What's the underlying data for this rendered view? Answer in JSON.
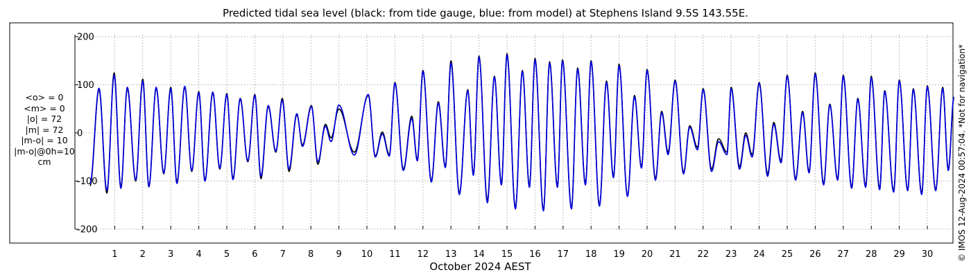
{
  "title": "Predicted tidal sea level (black: from tide gauge, blue: from model) at Stephens Island 9.5S 143.55E.",
  "stats": [
    "<o> = 0",
    "<m> = 0",
    "|o| = 72",
    "|m| = 72",
    "|m-o| = 10",
    "|m-o|@0h=10",
    "cm"
  ],
  "footer": "© IMOS 12-Aug-2024 00:57:04. *Not for navigation*",
  "chart_data": {
    "type": "line",
    "xlabel": "October 2024 AEST",
    "ylabel": "",
    "xlim": [
      0.0,
      31.0
    ],
    "ylim": [
      -220,
      220
    ],
    "yticks": [
      200,
      100,
      0,
      -100,
      -200
    ],
    "xticks": [
      1,
      2,
      3,
      4,
      5,
      6,
      7,
      8,
      9,
      10,
      11,
      12,
      13,
      14,
      15,
      16,
      17,
      18,
      19,
      20,
      21,
      22,
      23,
      24,
      25,
      26,
      27,
      28,
      29,
      30
    ],
    "grid": true,
    "colors": {
      "observed": "#000000",
      "model": "#0000dd",
      "grid": "#aaaaaa"
    },
    "series": [
      {
        "name": "tide gauge",
        "color": "#000000",
        "highs": [
          [
            0.44,
            90
          ],
          [
            0.98,
            125
          ],
          [
            1.45,
            92
          ],
          [
            2.0,
            112
          ],
          [
            2.48,
            93
          ],
          [
            3.0,
            95
          ],
          [
            3.5,
            95
          ],
          [
            4.0,
            86
          ],
          [
            4.5,
            83
          ],
          [
            5.0,
            82
          ],
          [
            5.48,
            70
          ],
          [
            6.0,
            80
          ],
          [
            6.48,
            55
          ],
          [
            6.98,
            72
          ],
          [
            7.5,
            38
          ],
          [
            8.02,
            57
          ],
          [
            8.52,
            18
          ],
          [
            9.0,
            50
          ],
          [
            10.05,
            78
          ],
          [
            10.55,
            2
          ],
          [
            11.0,
            105
          ],
          [
            11.6,
            35
          ],
          [
            12.0,
            130
          ],
          [
            12.55,
            65
          ],
          [
            13.0,
            150
          ],
          [
            13.6,
            90
          ],
          [
            14.0,
            160
          ],
          [
            14.55,
            118
          ],
          [
            15.0,
            165
          ],
          [
            15.55,
            130
          ],
          [
            16.0,
            155
          ],
          [
            16.52,
            148
          ],
          [
            16.98,
            152
          ],
          [
            17.52,
            135
          ],
          [
            18.0,
            150
          ],
          [
            18.55,
            108
          ],
          [
            19.0,
            143
          ],
          [
            19.55,
            78
          ],
          [
            20.0,
            132
          ],
          [
            20.52,
            45
          ],
          [
            21.0,
            110
          ],
          [
            21.52,
            15
          ],
          [
            22.0,
            92
          ],
          [
            22.55,
            -12
          ],
          [
            23.0,
            95
          ],
          [
            23.52,
            0
          ],
          [
            24.0,
            105
          ],
          [
            24.52,
            22
          ],
          [
            25.0,
            120
          ],
          [
            25.55,
            45
          ],
          [
            26.0,
            125
          ],
          [
            26.52,
            60
          ],
          [
            27.0,
            120
          ],
          [
            27.52,
            72
          ],
          [
            28.0,
            118
          ],
          [
            28.48,
            88
          ],
          [
            29.0,
            110
          ],
          [
            29.5,
            92
          ],
          [
            30.0,
            98
          ],
          [
            30.55,
            95
          ],
          [
            30.95,
            72
          ]
        ],
        "lows": [
          [
            0.12,
            -110
          ],
          [
            0.72,
            -125
          ],
          [
            1.22,
            -112
          ],
          [
            1.75,
            -100
          ],
          [
            2.22,
            -110
          ],
          [
            2.75,
            -85
          ],
          [
            3.22,
            -102
          ],
          [
            3.75,
            -80
          ],
          [
            4.22,
            -98
          ],
          [
            4.75,
            -75
          ],
          [
            5.22,
            -95
          ],
          [
            5.75,
            -60
          ],
          [
            6.22,
            -95
          ],
          [
            6.75,
            -40
          ],
          [
            7.22,
            -80
          ],
          [
            7.7,
            -25
          ],
          [
            8.25,
            -65
          ],
          [
            8.72,
            -10
          ],
          [
            9.55,
            -40
          ],
          [
            10.3,
            -48
          ],
          [
            10.8,
            -45
          ],
          [
            11.3,
            -75
          ],
          [
            11.8,
            -55
          ],
          [
            12.3,
            -100
          ],
          [
            12.8,
            -70
          ],
          [
            13.3,
            -125
          ],
          [
            13.8,
            -85
          ],
          [
            14.3,
            -140
          ],
          [
            14.8,
            -105
          ],
          [
            15.3,
            -155
          ],
          [
            15.8,
            -110
          ],
          [
            16.3,
            -160
          ],
          [
            16.8,
            -110
          ],
          [
            17.3,
            -155
          ],
          [
            17.8,
            -105
          ],
          [
            18.3,
            -150
          ],
          [
            18.8,
            -90
          ],
          [
            19.3,
            -130
          ],
          [
            19.8,
            -70
          ],
          [
            20.3,
            -95
          ],
          [
            20.75,
            -40
          ],
          [
            21.3,
            -82
          ],
          [
            21.8,
            -30
          ],
          [
            22.3,
            -75
          ],
          [
            22.85,
            -40
          ],
          [
            23.3,
            -70
          ],
          [
            23.75,
            -45
          ],
          [
            24.3,
            -85
          ],
          [
            24.78,
            -58
          ],
          [
            25.3,
            -95
          ],
          [
            25.78,
            -80
          ],
          [
            26.3,
            -105
          ],
          [
            26.8,
            -95
          ],
          [
            27.3,
            -112
          ],
          [
            27.8,
            -110
          ],
          [
            28.3,
            -115
          ],
          [
            28.8,
            -120
          ],
          [
            29.3,
            -118
          ],
          [
            29.8,
            -125
          ],
          [
            30.3,
            -118
          ],
          [
            30.75,
            -75
          ]
        ]
      },
      {
        "name": "model",
        "color": "#0000dd",
        "highs": [
          [
            0.44,
            93
          ],
          [
            0.98,
            120
          ],
          [
            1.45,
            95
          ],
          [
            2.0,
            108
          ],
          [
            2.48,
            95
          ],
          [
            3.0,
            92
          ],
          [
            3.5,
            97
          ],
          [
            4.0,
            84
          ],
          [
            4.5,
            85
          ],
          [
            5.0,
            80
          ],
          [
            5.48,
            72
          ],
          [
            6.0,
            78
          ],
          [
            6.48,
            57
          ],
          [
            6.98,
            68
          ],
          [
            7.5,
            40
          ],
          [
            8.02,
            55
          ],
          [
            8.52,
            14
          ],
          [
            9.0,
            58
          ],
          [
            10.05,
            80
          ],
          [
            10.55,
            -2
          ],
          [
            11.0,
            103
          ],
          [
            11.6,
            30
          ],
          [
            12.0,
            128
          ],
          [
            12.55,
            62
          ],
          [
            13.0,
            145
          ],
          [
            13.6,
            88
          ],
          [
            14.0,
            158
          ],
          [
            14.55,
            116
          ],
          [
            15.0,
            162
          ],
          [
            15.55,
            128
          ],
          [
            16.0,
            152
          ],
          [
            16.52,
            145
          ],
          [
            16.98,
            150
          ],
          [
            17.52,
            132
          ],
          [
            18.0,
            148
          ],
          [
            18.55,
            105
          ],
          [
            19.0,
            140
          ],
          [
            19.55,
            75
          ],
          [
            20.0,
            130
          ],
          [
            20.52,
            42
          ],
          [
            21.0,
            108
          ],
          [
            21.52,
            12
          ],
          [
            22.0,
            90
          ],
          [
            22.55,
            -18
          ],
          [
            23.0,
            92
          ],
          [
            23.52,
            -5
          ],
          [
            24.0,
            103
          ],
          [
            24.52,
            18
          ],
          [
            25.0,
            118
          ],
          [
            25.55,
            42
          ],
          [
            26.0,
            122
          ],
          [
            26.52,
            58
          ],
          [
            27.0,
            118
          ],
          [
            27.52,
            70
          ],
          [
            28.0,
            115
          ],
          [
            28.48,
            86
          ],
          [
            29.0,
            108
          ],
          [
            29.5,
            90
          ],
          [
            30.0,
            96
          ],
          [
            30.55,
            92
          ],
          [
            30.95,
            75
          ]
        ],
        "lows": [
          [
            0.12,
            -105
          ],
          [
            0.72,
            -120
          ],
          [
            1.22,
            -115
          ],
          [
            1.75,
            -98
          ],
          [
            2.22,
            -112
          ],
          [
            2.75,
            -83
          ],
          [
            3.22,
            -105
          ],
          [
            3.75,
            -78
          ],
          [
            4.22,
            -100
          ],
          [
            4.75,
            -73
          ],
          [
            5.22,
            -97
          ],
          [
            5.75,
            -58
          ],
          [
            6.22,
            -90
          ],
          [
            6.75,
            -38
          ],
          [
            7.22,
            -75
          ],
          [
            7.7,
            -28
          ],
          [
            8.25,
            -60
          ],
          [
            8.72,
            -18
          ],
          [
            9.55,
            -46
          ],
          [
            10.3,
            -50
          ],
          [
            10.8,
            -48
          ],
          [
            11.3,
            -78
          ],
          [
            11.8,
            -58
          ],
          [
            12.3,
            -102
          ],
          [
            12.8,
            -72
          ],
          [
            13.3,
            -128
          ],
          [
            13.8,
            -88
          ],
          [
            14.3,
            -145
          ],
          [
            14.8,
            -108
          ],
          [
            15.3,
            -158
          ],
          [
            15.8,
            -113
          ],
          [
            16.3,
            -162
          ],
          [
            16.8,
            -113
          ],
          [
            17.3,
            -158
          ],
          [
            17.8,
            -108
          ],
          [
            18.3,
            -152
          ],
          [
            18.8,
            -93
          ],
          [
            19.3,
            -132
          ],
          [
            19.8,
            -73
          ],
          [
            20.3,
            -98
          ],
          [
            20.75,
            -45
          ],
          [
            21.3,
            -85
          ],
          [
            21.8,
            -35
          ],
          [
            22.3,
            -80
          ],
          [
            22.85,
            -45
          ],
          [
            23.3,
            -75
          ],
          [
            23.75,
            -50
          ],
          [
            24.3,
            -90
          ],
          [
            24.78,
            -62
          ],
          [
            25.3,
            -98
          ],
          [
            25.78,
            -83
          ],
          [
            26.3,
            -108
          ],
          [
            26.8,
            -98
          ],
          [
            27.3,
            -115
          ],
          [
            27.8,
            -113
          ],
          [
            28.3,
            -118
          ],
          [
            28.8,
            -123
          ],
          [
            29.3,
            -120
          ],
          [
            29.8,
            -128
          ],
          [
            30.3,
            -120
          ],
          [
            30.75,
            -78
          ]
        ]
      }
    ]
  }
}
